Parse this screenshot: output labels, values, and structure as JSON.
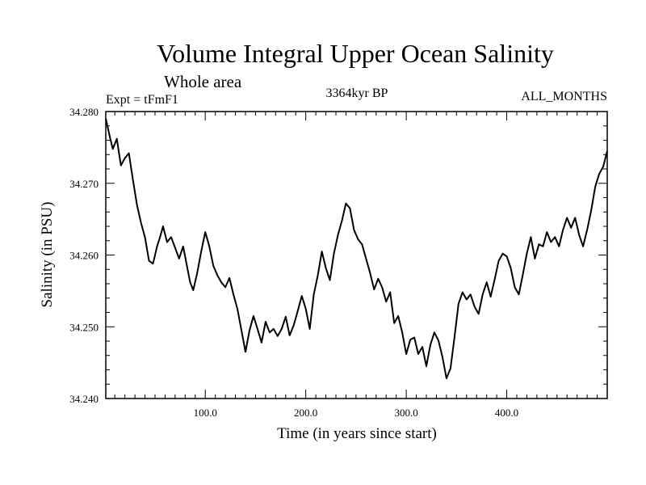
{
  "chart_data": {
    "type": "line",
    "title": "Volume Integral Upper Ocean Salinity",
    "subtitle": "Whole area",
    "experiment": "Expt = tFmF1",
    "period": "3364kyr BP",
    "months": "ALL_MONTHS",
    "xlabel": "Time (in years since start)",
    "ylabel": "Salinity (in PSU)",
    "xlim": [
      1,
      500
    ],
    "ylim": [
      34.24,
      34.28
    ],
    "xticks": [
      100,
      200,
      300,
      400
    ],
    "xtick_labels": [
      "100.0",
      "200.0",
      "300.0",
      "400.0"
    ],
    "yticks": [
      34.24,
      34.25,
      34.26,
      34.27,
      34.28
    ],
    "ytick_labels": [
      "34.240",
      "34.250",
      "34.260",
      "34.270",
      "34.280"
    ],
    "series": [
      {
        "name": "salinity",
        "x": [
          1,
          5,
          8,
          12,
          16,
          20,
          24,
          28,
          32,
          36,
          40,
          44,
          48,
          52,
          55,
          58,
          62,
          66,
          70,
          74,
          78,
          82,
          85,
          88,
          92,
          96,
          100,
          104,
          108,
          112,
          116,
          120,
          124,
          128,
          132,
          136,
          140,
          144,
          148,
          152,
          156,
          160,
          164,
          168,
          172,
          176,
          180,
          184,
          188,
          192,
          196,
          200,
          204,
          208,
          212,
          216,
          220,
          224,
          228,
          232,
          236,
          240,
          244,
          248,
          252,
          256,
          260,
          264,
          268,
          272,
          276,
          280,
          284,
          288,
          292,
          296,
          300,
          304,
          308,
          312,
          316,
          320,
          324,
          328,
          332,
          336,
          340,
          344,
          348,
          352,
          356,
          360,
          364,
          368,
          372,
          376,
          380,
          384,
          388,
          392,
          396,
          400,
          404,
          408,
          412,
          416,
          420,
          424,
          428,
          432,
          436,
          440,
          444,
          448,
          452,
          456,
          460,
          464,
          468,
          472,
          476,
          480,
          484,
          488,
          492,
          496,
          500
        ],
        "values": [
          34.279,
          34.2765,
          34.2748,
          34.2762,
          34.2725,
          34.2735,
          34.2742,
          34.2705,
          34.267,
          34.2645,
          34.2625,
          34.2592,
          34.2588,
          34.2612,
          34.2625,
          34.264,
          34.2618,
          34.2625,
          34.261,
          34.2595,
          34.2612,
          34.2583,
          34.2562,
          34.2551,
          34.2575,
          34.2605,
          34.2632,
          34.2612,
          34.2585,
          34.2572,
          34.2562,
          34.2555,
          34.2568,
          34.2545,
          34.2525,
          34.2495,
          34.2465,
          34.2495,
          34.2515,
          34.2497,
          34.2478,
          34.2507,
          34.2492,
          34.2497,
          34.2487,
          34.2497,
          34.2514,
          34.2488,
          34.2502,
          34.2522,
          34.2543,
          34.2525,
          34.2497,
          34.2545,
          34.2572,
          34.2605,
          34.2582,
          34.2565,
          34.2602,
          34.2628,
          34.2648,
          34.2672,
          34.2665,
          34.2635,
          34.2622,
          34.2615,
          34.2595,
          34.2575,
          34.2552,
          34.2567,
          34.2555,
          34.2535,
          34.2548,
          34.2505,
          34.2515,
          34.2492,
          34.2462,
          34.2482,
          34.2485,
          34.2462,
          34.2472,
          34.2445,
          34.2475,
          34.2492,
          34.2481,
          34.2458,
          34.2428,
          34.2442,
          34.2485,
          34.2532,
          34.2548,
          34.2538,
          34.2545,
          34.2528,
          34.2518,
          34.2545,
          34.2562,
          34.2542,
          34.2566,
          34.2592,
          34.2602,
          34.2598,
          34.2582,
          34.2555,
          34.2545,
          34.2573,
          34.2602,
          34.2625,
          34.2595,
          34.2615,
          34.2612,
          34.2632,
          34.2618,
          34.2625,
          34.2612,
          34.2635,
          34.2652,
          34.2638,
          34.2652,
          34.2628,
          34.2612,
          34.2635,
          34.2662,
          34.2695,
          34.2713,
          34.2723,
          34.2745
        ]
      }
    ]
  }
}
